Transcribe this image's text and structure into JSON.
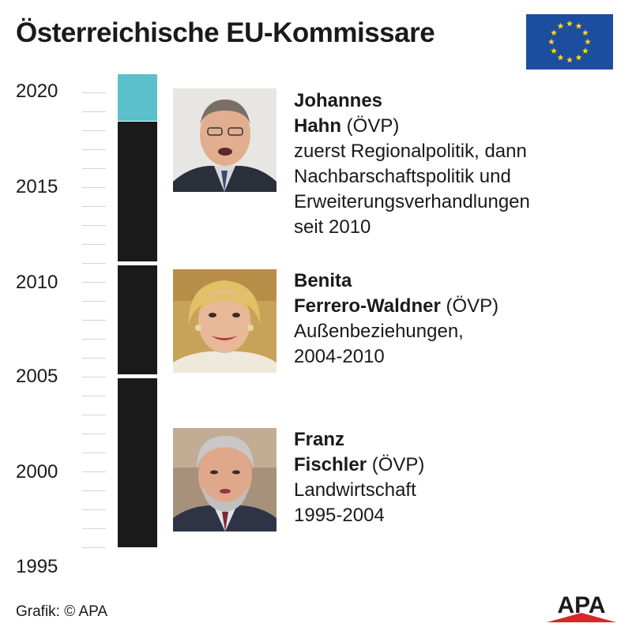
{
  "title": "Österreichische EU-Kommissare",
  "timeline": {
    "years": [
      "2020",
      "2015",
      "2010",
      "2005",
      "2000",
      "1995"
    ],
    "current_color": "#5bc0cc",
    "term_color": "#1a1a1a"
  },
  "commissioners": [
    {
      "first": "Johannes",
      "last": "Hahn",
      "party": " (ÖVP)",
      "lines": [
        "zuerst Regionalpolitik, dann",
        "Nachbarschaftspolitik und",
        "Erweiterungsverhandlungen",
        "seit 2010"
      ]
    },
    {
      "first": "Benita",
      "last": "Ferrero-Waldner",
      "party": " (ÖVP)",
      "lines": [
        "Außenbeziehungen,",
        "2004-2010"
      ]
    },
    {
      "first": "Franz",
      "last": "Fischler",
      "party": " (ÖVP)",
      "lines": [
        "Landwirtschaft",
        "1995-2004"
      ]
    }
  ],
  "credit": "Grafik: © APA",
  "logo_text": "APA",
  "colors": {
    "eu_blue": "#1d4d9e",
    "eu_star": "#ffdd00",
    "apa_red": "#d8262a"
  }
}
